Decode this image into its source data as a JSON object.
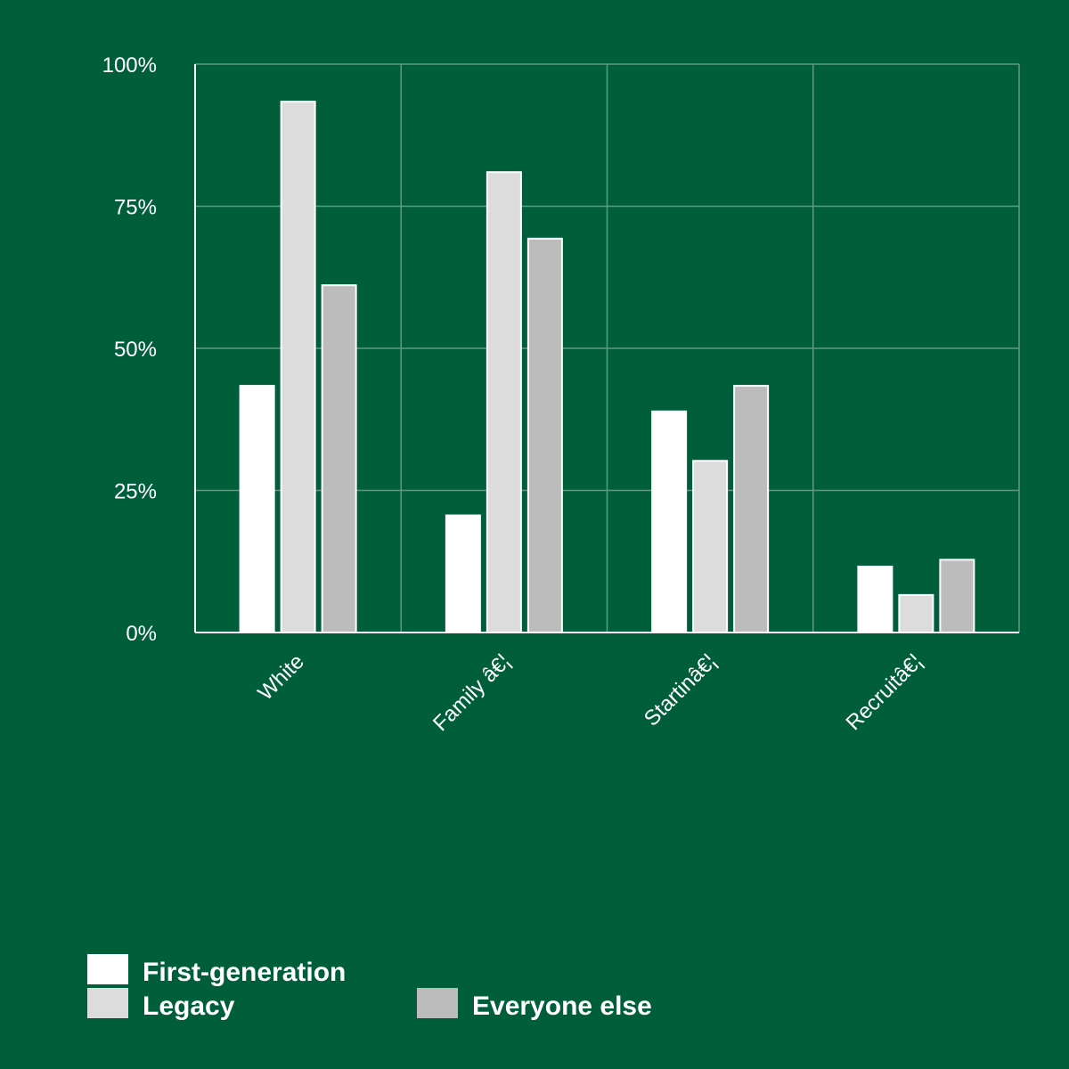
{
  "chart_data": {
    "type": "bar",
    "categories": [
      "White",
      "Family â€¦",
      "Startinâ€¦",
      "Recruitâ€¦"
    ],
    "series": [
      {
        "name": "First-generation",
        "color": "#ffffff",
        "values": [
          43.4,
          20.6,
          38.9,
          11.6
        ]
      },
      {
        "name": "Legacy",
        "color": "#dcdcdc",
        "values": [
          93.4,
          81.0,
          30.2,
          6.6
        ]
      },
      {
        "name": "Everyone else",
        "color": "#bcbcbc",
        "values": [
          61.1,
          69.3,
          43.4,
          12.8
        ]
      }
    ],
    "yticks": [
      "0%",
      "25%",
      "50%",
      "75%",
      "100%"
    ],
    "ylim": [
      0,
      100
    ],
    "grid": true,
    "legend_position": "bottom-left"
  },
  "colors": {
    "background": "#005e3b",
    "grid": "#5f9a81",
    "axis": "#ffffff"
  }
}
